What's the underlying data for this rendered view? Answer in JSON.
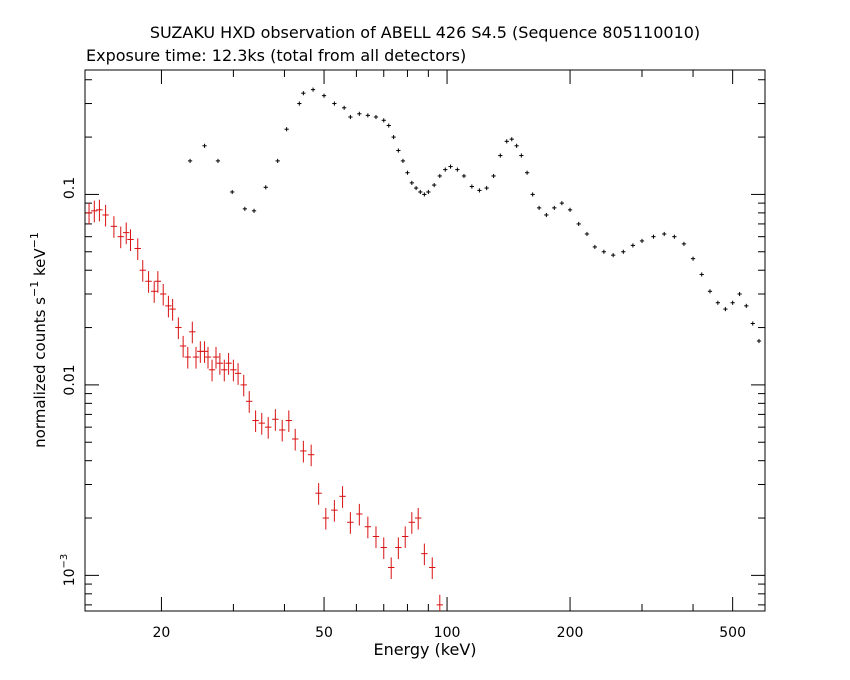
{
  "chart_data": {
    "type": "scatter",
    "title": "SUZAKU HXD observation of ABELL 426 S4.5 (Sequence 805110010)",
    "subtitle": "Exposure time: 12.3ks (total from all detectors)",
    "xlabel": "Energy (keV)",
    "ylabel_main": "normalized counts s",
    "ylabel_sup1": "−1",
    "ylabel_mid": " keV",
    "ylabel_sup2": "−1",
    "x_scale": "log",
    "y_scale": "log",
    "xlim": [
      13,
      600
    ],
    "ylim": [
      0.00065,
      0.45
    ],
    "x_ticks": [
      20,
      50,
      100,
      200,
      500
    ],
    "x_tick_labels": [
      "20",
      "50",
      "100",
      "200",
      "500"
    ],
    "y_tick_labels": {
      "t01": "0.1",
      "t001": "0.01",
      "t0001_base": "10",
      "t0001_exp": "−3"
    },
    "y_ticks": [
      0.1,
      0.01,
      0.001
    ],
    "grid": false,
    "colors": {
      "gso": "#000000",
      "pin": "#d81010"
    },
    "series": [
      {
        "color": "#000000",
        "points": [
          [
            23.5,
            0.15
          ],
          [
            25.5,
            0.18
          ],
          [
            27.5,
            0.15
          ],
          [
            29.8,
            0.103
          ],
          [
            32,
            0.084
          ],
          [
            33.7,
            0.082
          ],
          [
            36,
            0.109
          ],
          [
            38.5,
            0.15
          ],
          [
            40.5,
            0.22
          ],
          [
            43.5,
            0.3
          ],
          [
            44.5,
            0.34
          ],
          [
            47,
            0.355
          ],
          [
            50,
            0.33
          ],
          [
            53,
            0.3
          ],
          [
            56,
            0.285
          ],
          [
            58,
            0.255
          ],
          [
            61,
            0.265
          ],
          [
            64,
            0.26
          ],
          [
            67,
            0.255
          ],
          [
            70,
            0.245
          ],
          [
            72,
            0.23
          ],
          [
            74,
            0.2
          ],
          [
            76,
            0.17
          ],
          [
            78,
            0.15
          ],
          [
            80,
            0.13
          ],
          [
            82,
            0.115
          ],
          [
            84,
            0.108
          ],
          [
            86,
            0.103
          ],
          [
            88,
            0.1
          ],
          [
            90,
            0.103
          ],
          [
            93,
            0.112
          ],
          [
            96,
            0.125
          ],
          [
            99,
            0.135
          ],
          [
            102,
            0.14
          ],
          [
            106,
            0.135
          ],
          [
            110,
            0.125
          ],
          [
            115,
            0.11
          ],
          [
            120,
            0.105
          ],
          [
            125,
            0.108
          ],
          [
            130,
            0.125
          ],
          [
            135,
            0.16
          ],
          [
            140,
            0.19
          ],
          [
            144,
            0.195
          ],
          [
            148,
            0.18
          ],
          [
            152,
            0.16
          ],
          [
            157,
            0.13
          ],
          [
            162,
            0.1
          ],
          [
            168,
            0.085
          ],
          [
            175,
            0.078
          ],
          [
            183,
            0.085
          ],
          [
            191,
            0.09
          ],
          [
            200,
            0.083
          ],
          [
            210,
            0.07
          ],
          [
            220,
            0.062
          ],
          [
            230,
            0.053
          ],
          [
            242,
            0.05
          ],
          [
            255,
            0.048
          ],
          [
            270,
            0.05
          ],
          [
            285,
            0.054
          ],
          [
            300,
            0.057
          ],
          [
            320,
            0.06
          ],
          [
            340,
            0.062
          ],
          [
            360,
            0.06
          ],
          [
            380,
            0.055
          ],
          [
            400,
            0.046
          ],
          [
            420,
            0.038
          ],
          [
            440,
            0.031
          ],
          [
            460,
            0.027
          ],
          [
            480,
            0.025
          ],
          [
            500,
            0.027
          ],
          [
            520,
            0.03
          ],
          [
            540,
            0.026
          ],
          [
            560,
            0.021
          ],
          [
            580,
            0.017
          ]
        ]
      },
      {
        "color": "#d81010",
        "points": [
          [
            13.3,
            0.08
          ],
          [
            13.7,
            0.082
          ],
          [
            14.1,
            0.083
          ],
          [
            14.6,
            0.078
          ],
          [
            15.3,
            0.068
          ],
          [
            15.9,
            0.06
          ],
          [
            16.4,
            0.063
          ],
          [
            16.8,
            0.058
          ],
          [
            17.5,
            0.052
          ],
          [
            18,
            0.04
          ],
          [
            18.6,
            0.035
          ],
          [
            19.2,
            0.031
          ],
          [
            19.6,
            0.035
          ],
          [
            20.2,
            0.03
          ],
          [
            20.8,
            0.026
          ],
          [
            21.3,
            0.025
          ],
          [
            22,
            0.02
          ],
          [
            22.6,
            0.016
          ],
          [
            23.2,
            0.014
          ],
          [
            23.8,
            0.019
          ],
          [
            24.3,
            0.014
          ],
          [
            24.9,
            0.015
          ],
          [
            25.5,
            0.015
          ],
          [
            26,
            0.014
          ],
          [
            26.6,
            0.012
          ],
          [
            27.2,
            0.014
          ],
          [
            27.8,
            0.013
          ],
          [
            28.5,
            0.012
          ],
          [
            29.2,
            0.013
          ],
          [
            30,
            0.012
          ],
          [
            30.8,
            0.0115
          ],
          [
            31.8,
            0.01
          ],
          [
            32.8,
            0.0082
          ],
          [
            34,
            0.0065
          ],
          [
            35.2,
            0.0063
          ],
          [
            36.5,
            0.006
          ],
          [
            38,
            0.0066
          ],
          [
            39.5,
            0.0058
          ],
          [
            41,
            0.0065
          ],
          [
            42.5,
            0.0052
          ],
          [
            44.5,
            0.0045
          ],
          [
            46.5,
            0.0043
          ],
          [
            48.5,
            0.0027
          ],
          [
            50.5,
            0.002
          ],
          [
            53,
            0.0022
          ],
          [
            55.5,
            0.0026
          ],
          [
            58,
            0.0019
          ],
          [
            61,
            0.0021
          ],
          [
            64,
            0.0018
          ],
          [
            67,
            0.0016
          ],
          [
            70,
            0.0014
          ],
          [
            73,
            0.0011
          ],
          [
            76,
            0.0014
          ],
          [
            79,
            0.0016
          ],
          [
            82,
            0.0019
          ],
          [
            85,
            0.002
          ],
          [
            88,
            0.0013
          ],
          [
            92,
            0.0011
          ],
          [
            96,
            0.0007
          ]
        ]
      }
    ]
  }
}
